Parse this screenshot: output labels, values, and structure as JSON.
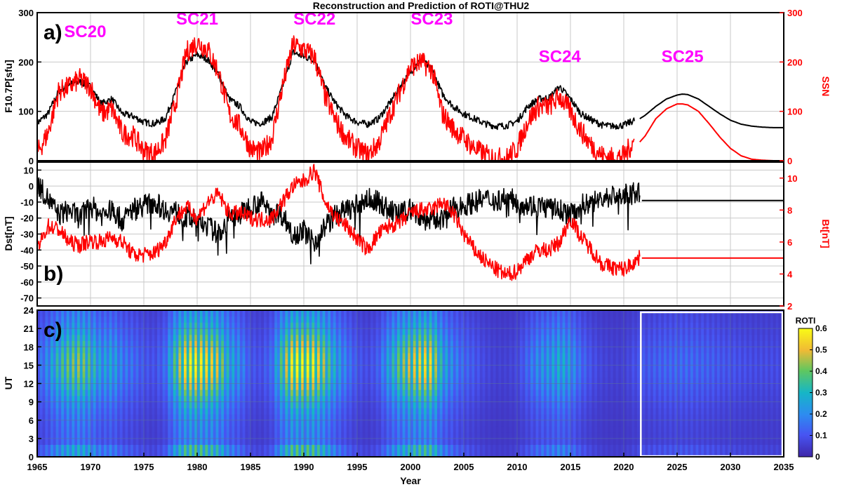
{
  "title": "Reconstruction and Prediction of ROTI@THU2",
  "colors": {
    "black_series": "#000000",
    "red_series": "#ff0000",
    "cycle_label": "#ff00ff",
    "grid": "#c8c8c8",
    "prediction_box": "#ffffff"
  },
  "chart_data": [
    {
      "panel": "a)",
      "type": "line",
      "xlabel": "",
      "ylabel": "F10.7P[sfu]",
      "ylabel_right": "SSN",
      "xlim": [
        1965,
        2035
      ],
      "ylim": [
        0,
        300
      ],
      "ylim_right": [
        0,
        300
      ],
      "yticks": [
        0,
        100,
        200,
        300
      ],
      "yticks_right": [
        0,
        100,
        200,
        300
      ],
      "grid": true,
      "cycle_labels": [
        {
          "text": "SC20",
          "x": 1969.5,
          "y": 250
        },
        {
          "text": "SC21",
          "x": 1980.0,
          "y": 276
        },
        {
          "text": "SC22",
          "x": 1991.0,
          "y": 276
        },
        {
          "text": "SC23",
          "x": 2002.0,
          "y": 276
        },
        {
          "text": "SC24",
          "x": 2014.0,
          "y": 200
        },
        {
          "text": "SC25",
          "x": 2025.5,
          "y": 200
        }
      ],
      "series": [
        {
          "axis": "left",
          "color": "#000000",
          "x": [
            1965,
            1966,
            1967,
            1968,
            1969,
            1970,
            1971,
            1972,
            1973,
            1974,
            1975,
            1976,
            1977,
            1978,
            1979,
            1980,
            1981,
            1982,
            1983,
            1984,
            1985,
            1986,
            1987,
            1988,
            1989,
            1990,
            1991,
            1992,
            1993,
            1994,
            1995,
            1996,
            1997,
            1998,
            1999,
            2000,
            2001,
            2002,
            2003,
            2004,
            2005,
            2006,
            2007,
            2008,
            2009,
            2010,
            2011,
            2012,
            2013,
            2014,
            2015,
            2016,
            2017,
            2018,
            2019,
            2020,
            2021
          ],
          "values": [
            76,
            95,
            140,
            155,
            160,
            150,
            115,
            125,
            95,
            90,
            78,
            75,
            85,
            140,
            200,
            215,
            205,
            175,
            125,
            110,
            78,
            76,
            88,
            150,
            220,
            210,
            205,
            150,
            115,
            90,
            78,
            74,
            85,
            115,
            150,
            180,
            205,
            185,
            135,
            110,
            95,
            85,
            75,
            70,
            71,
            80,
            110,
            125,
            128,
            150,
            125,
            95,
            82,
            72,
            70,
            72,
            82
          ]
        },
        {
          "axis": "right",
          "color": "#ff0000",
          "x": [
            1965,
            1966,
            1967,
            1968,
            1969,
            1970,
            1971,
            1972,
            1973,
            1974,
            1975,
            1976,
            1977,
            1978,
            1979,
            1980,
            1981,
            1982,
            1983,
            1984,
            1985,
            1986,
            1987,
            1988,
            1989,
            1990,
            1991,
            1992,
            1993,
            1994,
            1995,
            1996,
            1997,
            1998,
            1999,
            2000,
            2001,
            2002,
            2003,
            2004,
            2005,
            2006,
            2007,
            2008,
            2009,
            2010,
            2011,
            2012,
            2013,
            2014,
            2015,
            2016,
            2017,
            2018,
            2019,
            2020,
            2021
          ],
          "values": [
            15,
            55,
            140,
            150,
            165,
            150,
            95,
            105,
            55,
            50,
            20,
            15,
            40,
            120,
            220,
            240,
            225,
            180,
            95,
            70,
            25,
            15,
            45,
            150,
            235,
            225,
            210,
            130,
            80,
            45,
            25,
            12,
            35,
            90,
            140,
            190,
            200,
            185,
            95,
            65,
            45,
            25,
            12,
            5,
            5,
            25,
            80,
            110,
            110,
            130,
            100,
            60,
            30,
            10,
            5,
            10,
            40
          ]
        },
        {
          "axis": "left",
          "color": "#000000",
          "x": [
            2021.5,
            2022,
            2023,
            2024,
            2025,
            2025.5,
            2026,
            2027,
            2028,
            2029,
            2030,
            2031,
            2032,
            2033,
            2034,
            2035
          ],
          "values": [
            85,
            92,
            110,
            125,
            133,
            135,
            134,
            125,
            110,
            95,
            82,
            74,
            70,
            68,
            67,
            67
          ]
        },
        {
          "axis": "right",
          "color": "#ff0000",
          "x": [
            2021.5,
            2022,
            2023,
            2024,
            2025,
            2025.5,
            2026,
            2027,
            2028,
            2029,
            2030,
            2031,
            2032,
            2033,
            2034,
            2035
          ],
          "values": [
            38,
            50,
            85,
            105,
            115,
            115,
            113,
            100,
            75,
            48,
            25,
            10,
            3,
            1,
            0,
            0
          ]
        }
      ]
    },
    {
      "panel": "b)",
      "type": "line",
      "xlabel": "",
      "ylabel": "Dst[nT]",
      "ylabel_right": "Bt[nT]",
      "xlim": [
        1965,
        2035
      ],
      "ylim": [
        -75,
        15
      ],
      "ylim_right": [
        2,
        11
      ],
      "yticks": [
        -70,
        -60,
        -50,
        -40,
        -30,
        -20,
        -10,
        0,
        10
      ],
      "yticks_right": [
        2,
        4,
        6,
        8,
        10
      ],
      "grid": true,
      "series": [
        {
          "axis": "left",
          "color": "#000000",
          "x": [
            1965,
            1966,
            1967,
            1968,
            1969,
            1970,
            1971,
            1972,
            1973,
            1974,
            1975,
            1976,
            1977,
            1978,
            1979,
            1980,
            1981,
            1982,
            1983,
            1984,
            1985,
            1986,
            1987,
            1988,
            1989,
            1990,
            1991,
            1992,
            1993,
            1994,
            1995,
            1996,
            1997,
            1998,
            1999,
            2000,
            2001,
            2002,
            2003,
            2004,
            2005,
            2006,
            2007,
            2008,
            2009,
            2010,
            2011,
            2012,
            2013,
            2014,
            2015,
            2016,
            2017,
            2018,
            2019,
            2020,
            2021.5
          ],
          "values": [
            2,
            -8,
            -18,
            -15,
            -20,
            -12,
            -18,
            -15,
            -22,
            -14,
            -12,
            -10,
            -15,
            -16,
            -20,
            -22,
            -25,
            -30,
            -20,
            -18,
            -12,
            -10,
            -15,
            -18,
            -30,
            -28,
            -35,
            -25,
            -18,
            -15,
            -12,
            -8,
            -10,
            -15,
            -18,
            -14,
            -20,
            -22,
            -20,
            -14,
            -12,
            -10,
            -8,
            -9,
            -7,
            -10,
            -12,
            -12,
            -14,
            -15,
            -18,
            -12,
            -10,
            -8,
            -6,
            -6,
            -4
          ]
        },
        {
          "axis": "right",
          "color": "#ff0000",
          "x": [
            1965,
            1966,
            1967,
            1968,
            1969,
            1970,
            1971,
            1972,
            1973,
            1974,
            1975,
            1976,
            1977,
            1978,
            1979,
            1980,
            1981,
            1982,
            1983,
            1984,
            1985,
            1986,
            1987,
            1988,
            1989,
            1990,
            1991,
            1992,
            1993,
            1994,
            1995,
            1996,
            1997,
            1998,
            1999,
            2000,
            2001,
            2002,
            2003,
            2004,
            2005,
            2006,
            2007,
            2008,
            2009,
            2010,
            2011,
            2012,
            2013,
            2014,
            2015,
            2016,
            2017,
            2018,
            2019,
            2020,
            2021.5
          ],
          "values": [
            5.5,
            7.0,
            6.8,
            6.0,
            5.8,
            6.1,
            6.0,
            6.3,
            6.0,
            5.2,
            5.2,
            5.3,
            6.0,
            7.5,
            8.2,
            7.5,
            8.5,
            9.0,
            7.8,
            7.8,
            7.5,
            7.4,
            7.5,
            8.5,
            9.5,
            9.8,
            10.5,
            8.5,
            7.5,
            7.0,
            6.2,
            5.5,
            6.5,
            7.0,
            7.2,
            7.8,
            8.0,
            8.0,
            8.5,
            7.8,
            6.5,
            5.5,
            4.8,
            4.3,
            3.9,
            4.2,
            5.0,
            5.5,
            5.5,
            6.0,
            7.5,
            6.3,
            5.5,
            4.6,
            4.4,
            4.3,
            5.0
          ]
        },
        {
          "axis": "left",
          "color": "#000000",
          "x": [
            2021.7,
            2035
          ],
          "values": [
            -9,
            -9
          ]
        },
        {
          "axis": "right",
          "color": "#ff0000",
          "x": [
            2021.7,
            2035
          ],
          "values": [
            5.0,
            5.0
          ]
        }
      ]
    },
    {
      "panel": "c)",
      "type": "heatmap",
      "xlabel": "Year",
      "ylabel": "UT",
      "xlim": [
        1965,
        2035
      ],
      "xticks": [
        1965,
        1970,
        1975,
        1980,
        1985,
        1990,
        1995,
        2000,
        2005,
        2010,
        2015,
        2020,
        2025,
        2030,
        2035
      ],
      "ylim": [
        0,
        24
      ],
      "yticks": [
        0,
        3,
        6,
        9,
        12,
        15,
        18,
        21,
        24
      ],
      "colorbar_label": "ROTI",
      "colorbar_range": [
        0,
        0.6
      ],
      "colorbar_ticks": [
        0,
        0.1,
        0.2,
        0.3,
        0.4,
        0.5,
        0.6
      ],
      "prediction_box_x": [
        2021.6,
        2035
      ],
      "years": [
        1965,
        1966,
        1967,
        1968,
        1969,
        1970,
        1971,
        1972,
        1973,
        1974,
        1975,
        1976,
        1977,
        1978,
        1979,
        1980,
        1981,
        1982,
        1983,
        1984,
        1985,
        1986,
        1987,
        1988,
        1989,
        1990,
        1991,
        1992,
        1993,
        1994,
        1995,
        1996,
        1997,
        1998,
        1999,
        2000,
        2001,
        2002,
        2003,
        2004,
        2005,
        2006,
        2007,
        2008,
        2009,
        2010,
        2011,
        2012,
        2013,
        2014,
        2015,
        2016,
        2017,
        2018,
        2019,
        2020,
        2021,
        2022,
        2023,
        2024,
        2025,
        2026,
        2027,
        2028,
        2029,
        2030,
        2031,
        2032,
        2033,
        2034,
        2035
      ],
      "yearly_peak_roti": [
        0.12,
        0.22,
        0.35,
        0.42,
        0.45,
        0.38,
        0.25,
        0.28,
        0.18,
        0.15,
        0.1,
        0.08,
        0.15,
        0.42,
        0.58,
        0.6,
        0.55,
        0.5,
        0.3,
        0.22,
        0.1,
        0.08,
        0.15,
        0.42,
        0.6,
        0.6,
        0.58,
        0.45,
        0.28,
        0.18,
        0.1,
        0.07,
        0.12,
        0.28,
        0.42,
        0.5,
        0.55,
        0.55,
        0.3,
        0.2,
        0.14,
        0.1,
        0.06,
        0.04,
        0.04,
        0.06,
        0.14,
        0.22,
        0.25,
        0.3,
        0.25,
        0.14,
        0.08,
        0.05,
        0.04,
        0.04,
        0.08,
        0.1,
        0.12,
        0.13,
        0.14,
        0.14,
        0.13,
        0.12,
        0.1,
        0.09,
        0.08,
        0.07,
        0.07,
        0.07,
        0.07
      ]
    }
  ]
}
